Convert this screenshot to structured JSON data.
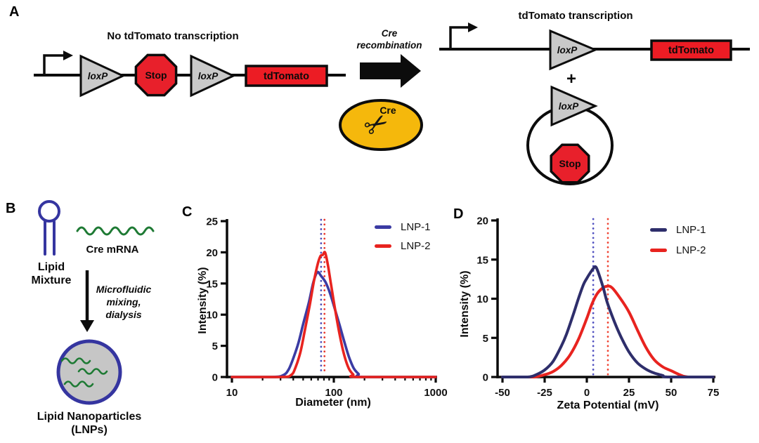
{
  "panel_labels": {
    "a": "A",
    "b": "B",
    "c": "C",
    "d": "D"
  },
  "icons": {
    "scissors": "✂"
  },
  "palette": {
    "stop_red": "#E8202B",
    "box_red": "#EC1C24",
    "triangle_gray": "#C9C9C9",
    "cre_yellow": "#F5B80C",
    "lipid_blue": "#3535A0",
    "mrna_green": "#1E7A34",
    "lnp1_c": "#3B3BA3",
    "lnp1_d": "#2E2E6B",
    "lnp2_red": "#E8231F"
  },
  "panel_a": {
    "left_title": "No tdTomato transcription",
    "right_title": "tdTomato transcription",
    "cre_recombination_line1": "Cre",
    "cre_recombination_line2": "recombination",
    "cre_badge_label": "Cre",
    "loxp_label": "loxP",
    "stop_label": "Stop",
    "tdtomato_label": "tdTomato",
    "plus_sign": "+"
  },
  "panel_b": {
    "lipid_line1": "Lipid",
    "lipid_line2": "Mixture",
    "mrna_label": "Cre mRNA",
    "process_line1": "Microfluidic",
    "process_line2": "mixing,",
    "process_line3": "dialysis",
    "lnp_line1": "Lipid  Nanoparticles",
    "lnp_line2": "(LNPs)"
  },
  "chart_data": [
    {
      "id": "C",
      "type": "line",
      "x_scale": "log",
      "xlabel": "Diameter (nm)",
      "ylabel": "Intensity (%)",
      "xlim": [
        10,
        1000
      ],
      "ylim": [
        0,
        25
      ],
      "xticks": [
        10,
        100,
        1000
      ],
      "yticks": [
        0,
        5,
        10,
        15,
        20,
        25
      ],
      "grid": false,
      "legend_position": "top-right",
      "legend": [
        {
          "label": "LNP-1",
          "color": "#3B3BA3"
        },
        {
          "label": "LNP-2",
          "color": "#E8231F"
        }
      ],
      "series": [
        {
          "name": "LNP-1",
          "color": "#3B3BA3",
          "x": [
            10,
            25,
            32,
            36,
            40,
            45,
            50,
            57,
            63,
            69,
            75,
            83,
            92,
            102,
            114,
            127,
            141,
            157,
            175,
            195,
            1000
          ],
          "y": [
            0,
            0,
            0.3,
            1.2,
            3,
            5.5,
            8.5,
            12,
            15.2,
            16.8,
            16.2,
            15.2,
            13.4,
            11,
            8.3,
            5.6,
            3.2,
            1.4,
            0.5,
            0,
            0
          ]
        },
        {
          "name": "LNP-2",
          "color": "#E8231F",
          "x": [
            10,
            30,
            38,
            42,
            47,
            52,
            58,
            64,
            70,
            74,
            78,
            82,
            87,
            94,
            103,
            114,
            126,
            140,
            155,
            170,
            1000
          ],
          "y": [
            0,
            0,
            0.3,
            1.5,
            4,
            7.5,
            11.5,
            15.5,
            18.3,
            19.4,
            19.6,
            20,
            18.2,
            14.8,
            10.8,
            6.8,
            3.6,
            1.4,
            0.4,
            0,
            0
          ]
        }
      ],
      "ref_lines": [
        {
          "x": 75,
          "color": "#4C4CB8"
        },
        {
          "x": 81,
          "color": "#E8392E"
        }
      ]
    },
    {
      "id": "D",
      "type": "line",
      "x_scale": "linear",
      "xlabel": "Zeta Potential (mV)",
      "ylabel": "Intensity  (%)",
      "xlim": [
        -50,
        75
      ],
      "ylim": [
        0,
        20
      ],
      "xticks": [
        -50,
        -25,
        0,
        25,
        50,
        75
      ],
      "yticks": [
        0,
        5,
        10,
        15,
        20
      ],
      "grid": false,
      "legend_position": "top-right",
      "legend": [
        {
          "label": "LNP-1",
          "color": "#2E2E6B"
        },
        {
          "label": "LNP-2",
          "color": "#E8231F"
        }
      ],
      "series": [
        {
          "name": "LNP-2",
          "color": "#E8231F",
          "x": [
            -50,
            -32,
            -25,
            -20,
            -15,
            -10,
            -5,
            0,
            3,
            6,
            9,
            12,
            15,
            20,
            25,
            30,
            35,
            40,
            45,
            50,
            55,
            60,
            75
          ],
          "y": [
            0,
            0,
            0.3,
            0.7,
            1.5,
            2.8,
            4.8,
            7.5,
            9.3,
            10.6,
            11.3,
            11.6,
            11.4,
            10,
            8.3,
            6,
            3.8,
            2.2,
            1.3,
            0.8,
            0.3,
            0,
            0
          ]
        },
        {
          "name": "LNP-1",
          "color": "#2E2E6B",
          "x": [
            -50,
            -35,
            -30,
            -25,
            -20,
            -15,
            -12,
            -8,
            -5,
            -2,
            0,
            2,
            4,
            5,
            6,
            8,
            10,
            12,
            15,
            18,
            21,
            25,
            30,
            35,
            40,
            45,
            48,
            75
          ],
          "y": [
            0,
            0,
            0.3,
            0.9,
            2,
            4,
            5.5,
            8,
            10,
            11.8,
            12.6,
            13.3,
            13.9,
            14.1,
            13.8,
            12.6,
            11.2,
            9.6,
            7.8,
            6.2,
            4.8,
            3.2,
            1.8,
            1,
            0.5,
            0.2,
            0,
            0
          ]
        }
      ],
      "ref_lines": [
        {
          "x": 3.8,
          "color": "#5050C0"
        },
        {
          "x": 12.5,
          "color": "#F04332"
        }
      ]
    }
  ]
}
